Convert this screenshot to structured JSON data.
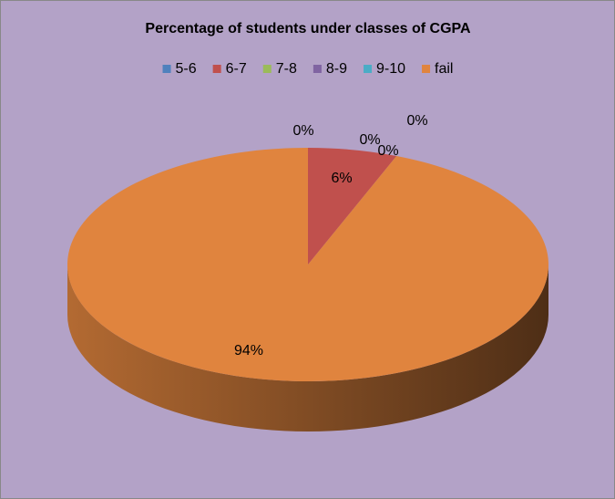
{
  "chart_data": {
    "type": "pie",
    "title": "Percentage of students under classes of CGPA",
    "categories": [
      "5-6",
      "6-7",
      "7-8",
      "8-9",
      "9-10",
      "fail"
    ],
    "values": [
      0,
      6,
      0,
      0,
      0,
      94
    ],
    "value_labels": [
      "0%",
      "6%",
      "0%",
      "0%",
      "0%",
      "94%"
    ],
    "colors": [
      "#4f81bd",
      "#c0504d",
      "#9bbb59",
      "#8064a2",
      "#4bacc6",
      "#e0843e"
    ],
    "legend": "top"
  }
}
